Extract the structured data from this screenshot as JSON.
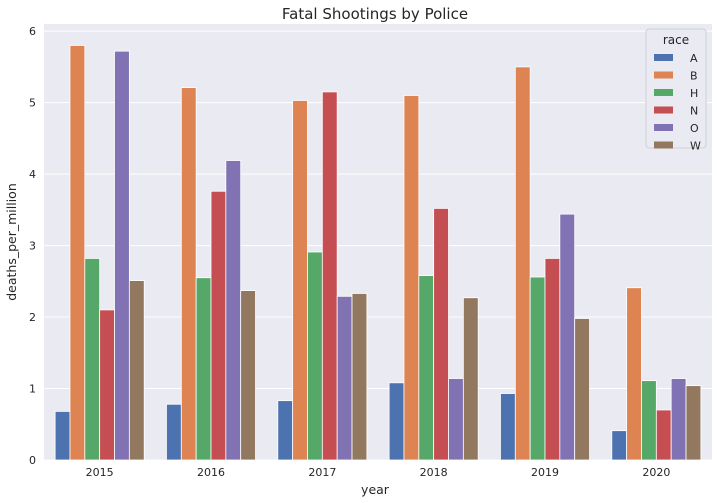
{
  "chart_data": {
    "type": "bar",
    "title": "Fatal Shootings by Police",
    "xlabel": "year",
    "ylabel": "deaths_per_million",
    "categories": [
      "2015",
      "2016",
      "2017",
      "2018",
      "2019",
      "2020"
    ],
    "ylim": [
      0,
      6.1
    ],
    "yticks": [
      "0",
      "1",
      "2",
      "3",
      "4",
      "5",
      "6"
    ],
    "grid": true,
    "legend": {
      "title": "race",
      "placement": "top-right"
    },
    "series": [
      {
        "name": "A",
        "color": "#4c72b0",
        "values": [
          0.68,
          0.78,
          0.83,
          1.08,
          0.93,
          0.41
        ]
      },
      {
        "name": "B",
        "color": "#dd8452",
        "values": [
          5.8,
          5.21,
          5.03,
          5.1,
          5.5,
          2.41
        ]
      },
      {
        "name": "H",
        "color": "#55a868",
        "values": [
          2.82,
          2.55,
          2.91,
          2.58,
          2.56,
          1.11
        ]
      },
      {
        "name": "N",
        "color": "#c44e52",
        "values": [
          2.1,
          3.76,
          5.15,
          3.52,
          2.82,
          0.7
        ]
      },
      {
        "name": "O",
        "color": "#8172b3",
        "values": [
          5.72,
          4.19,
          2.29,
          1.14,
          3.44,
          1.14
        ]
      },
      {
        "name": "W",
        "color": "#937860",
        "values": [
          2.51,
          2.37,
          2.33,
          2.27,
          1.98,
          1.04
        ]
      }
    ]
  }
}
